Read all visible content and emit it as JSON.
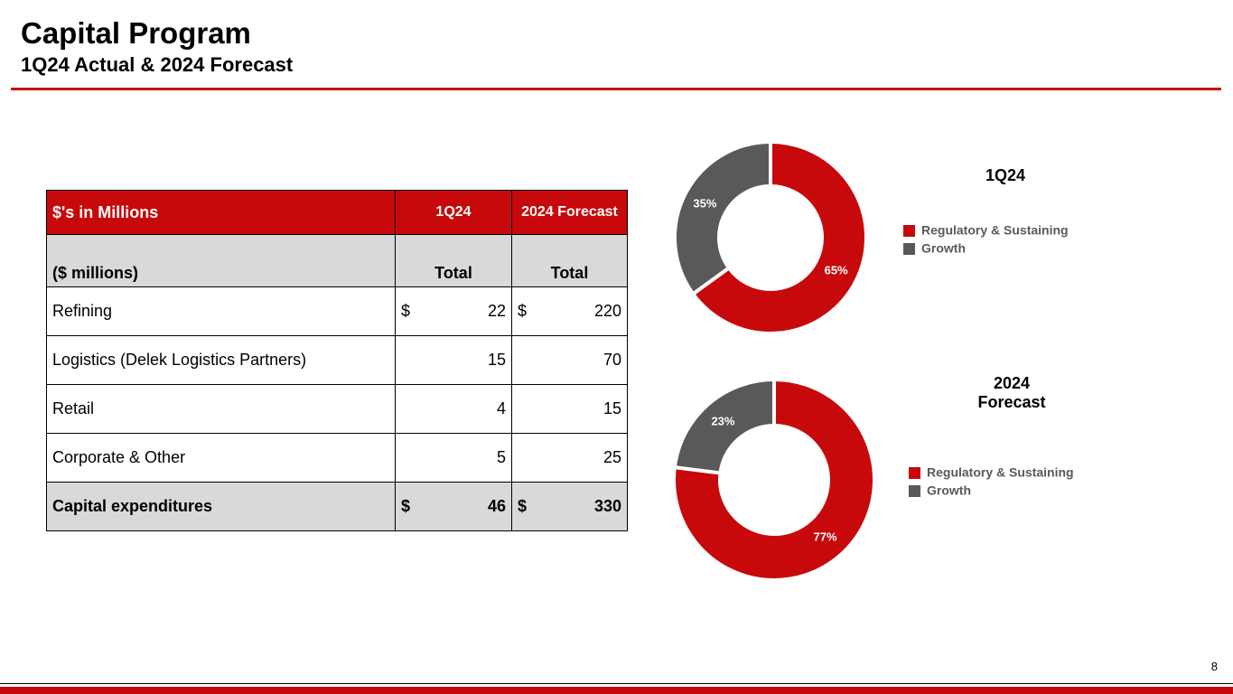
{
  "header": {
    "title": "Capital Program",
    "subtitle": "1Q24 Actual & 2024 Forecast"
  },
  "table": {
    "head": [
      "$'s in Millions",
      "1Q24",
      "2024 Forecast"
    ],
    "subhead": [
      "($ millions)",
      "Total",
      "Total"
    ],
    "rows": [
      {
        "label": "Refining",
        "q1_currency": "$",
        "q1": 22,
        "fy_currency": "$",
        "fy": 220
      },
      {
        "label": "Logistics (Delek Logistics Partners)",
        "q1": 15,
        "fy": 70
      },
      {
        "label": "Retail",
        "q1": 4,
        "fy": 15
      },
      {
        "label": "Corporate & Other",
        "q1": 5,
        "fy": 25
      }
    ],
    "total": {
      "label": "Capital expenditures",
      "q1_currency": "$",
      "q1": 46,
      "fy_currency": "$",
      "fy": 330
    }
  },
  "chart_data": [
    {
      "type": "pie",
      "title": "1Q24",
      "categories": [
        "Regulatory & Sustaining",
        "Growth"
      ],
      "values": [
        65,
        35
      ],
      "value_labels": [
        "65%",
        "35%"
      ],
      "colors": [
        "#c8090b",
        "#595959"
      ]
    },
    {
      "type": "pie",
      "title": "2024 Forecast",
      "categories": [
        "Regulatory & Sustaining",
        "Growth"
      ],
      "values": [
        77,
        23
      ],
      "value_labels": [
        "77%",
        "23%"
      ],
      "colors": [
        "#c8090b",
        "#595959"
      ]
    }
  ],
  "page_number": "8"
}
